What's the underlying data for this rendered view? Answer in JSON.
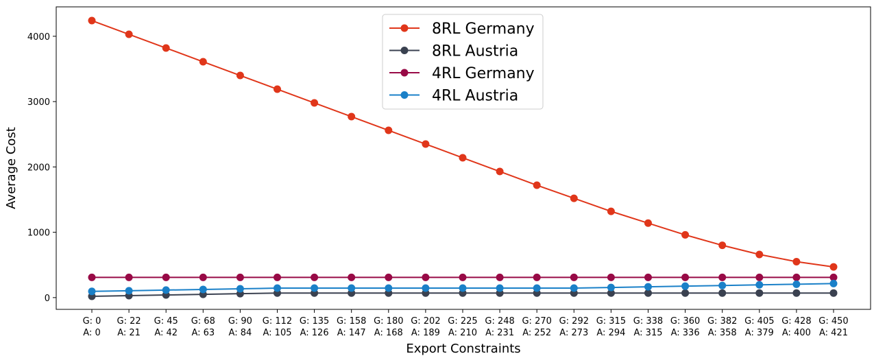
{
  "chart_data": {
    "type": "line",
    "title": "",
    "xlabel": "Export Constraints",
    "ylabel": "Average Cost",
    "ylim": [
      -180,
      4450
    ],
    "yticks": [
      0,
      1000,
      2000,
      3000,
      4000
    ],
    "grid": false,
    "legend_position": "top-center",
    "categories": [
      [
        "G: 0",
        "A: 0"
      ],
      [
        "G: 22",
        "A: 21"
      ],
      [
        "G: 45",
        "A: 42"
      ],
      [
        "G: 68",
        "A: 63"
      ],
      [
        "G: 90",
        "A: 84"
      ],
      [
        "G: 112",
        "A: 105"
      ],
      [
        "G: 135",
        "A: 126"
      ],
      [
        "G: 158",
        "A: 147"
      ],
      [
        "G: 180",
        "A: 168"
      ],
      [
        "G: 202",
        "A: 189"
      ],
      [
        "G: 225",
        "A: 210"
      ],
      [
        "G: 248",
        "A: 231"
      ],
      [
        "G: 270",
        "A: 252"
      ],
      [
        "G: 292",
        "A: 273"
      ],
      [
        "G: 315",
        "A: 294"
      ],
      [
        "G: 338",
        "A: 315"
      ],
      [
        "G: 360",
        "A: 336"
      ],
      [
        "G: 382",
        "A: 358"
      ],
      [
        "G: 405",
        "A: 379"
      ],
      [
        "G: 428",
        "A: 400"
      ],
      [
        "G: 450",
        "A: 421"
      ]
    ],
    "series": [
      {
        "name": "8RL Germany",
        "color": "#e0361a",
        "values": [
          4240,
          4030,
          3820,
          3610,
          3400,
          3190,
          2980,
          2770,
          2560,
          2350,
          2140,
          1930,
          1720,
          1520,
          1320,
          1140,
          960,
          800,
          660,
          550,
          470
        ]
      },
      {
        "name": "8RL Austria",
        "color": "#3a4150",
        "values": [
          20,
          30,
          40,
          50,
          60,
          70,
          70,
          70,
          70,
          70,
          70,
          70,
          70,
          70,
          70,
          70,
          70,
          70,
          70,
          70,
          70
        ]
      },
      {
        "name": "4RL Germany",
        "color": "#980a46",
        "values": [
          310,
          310,
          310,
          310,
          310,
          310,
          310,
          310,
          310,
          310,
          310,
          310,
          310,
          310,
          310,
          310,
          310,
          310,
          310,
          310,
          310
        ]
      },
      {
        "name": "4RL Austria",
        "color": "#1a80c8",
        "values": [
          95,
          105,
          115,
          125,
          135,
          145,
          145,
          145,
          145,
          145,
          145,
          145,
          145,
          145,
          155,
          165,
          175,
          185,
          195,
          205,
          215
        ]
      }
    ]
  }
}
